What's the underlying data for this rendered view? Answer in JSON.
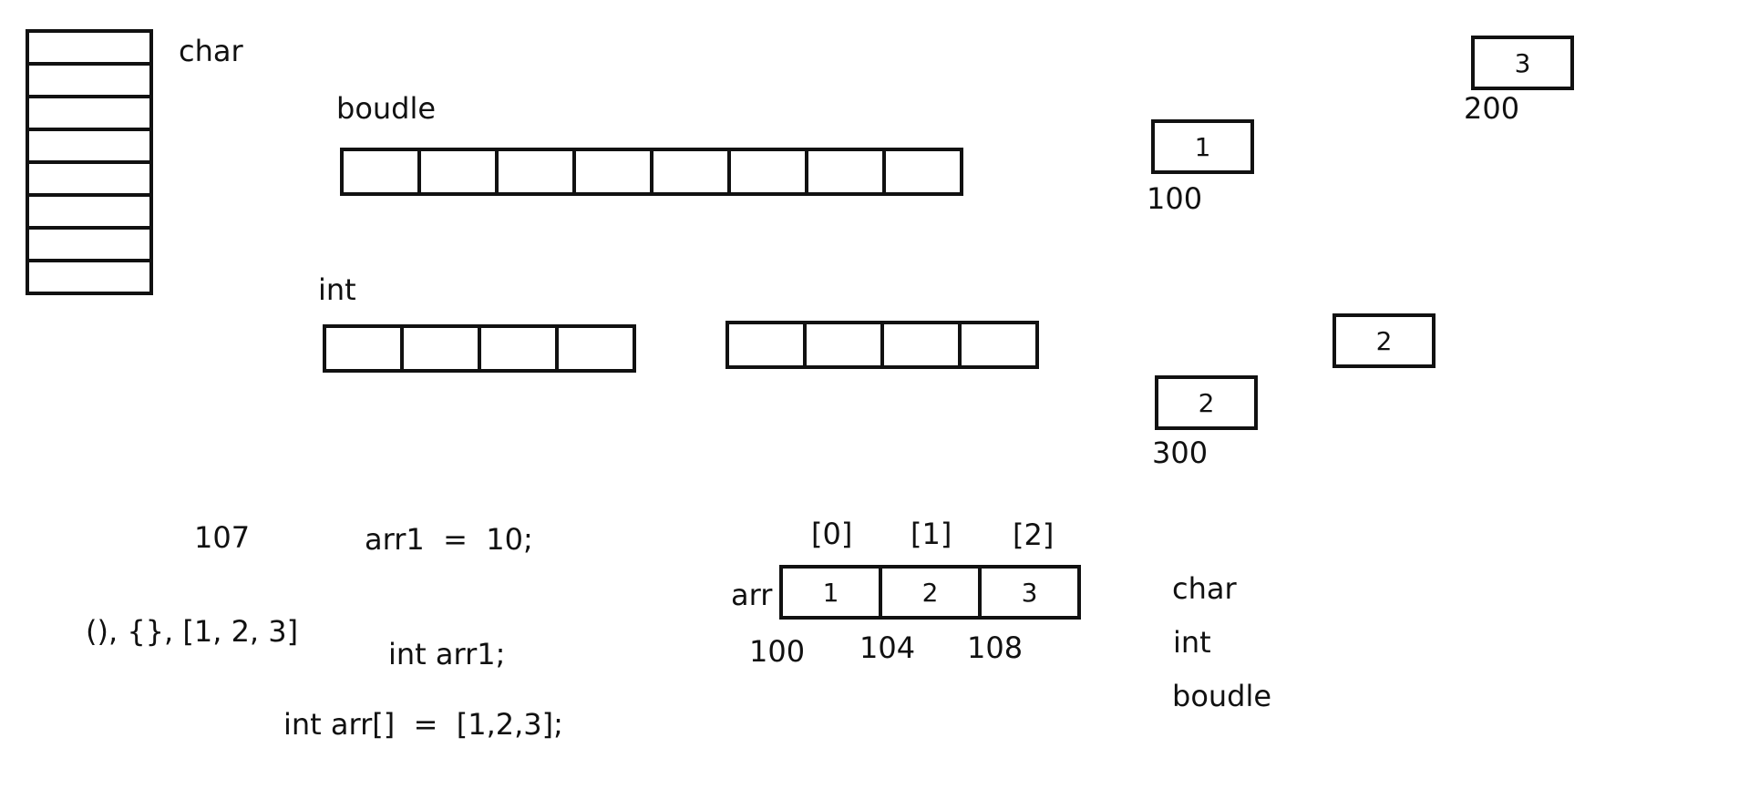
{
  "char_block": {
    "label": "char",
    "cells": 8
  },
  "double_block": {
    "label": "boudle",
    "cells": 8
  },
  "int_block": {
    "label": "int",
    "cells": 4
  },
  "int_block_2": {
    "cells": 4
  },
  "boxes": [
    {
      "value": "3",
      "address": "200"
    },
    {
      "value": "1",
      "address": "100"
    },
    {
      "value": "2",
      "address": ""
    },
    {
      "value": "2",
      "address": "300"
    }
  ],
  "notes": {
    "n107": "107",
    "brackets": "(), {}, [1, 2, 3]",
    "assign": "arr1  =  10;",
    "decl": "int arr1;",
    "arr_init": "int arr[]  =  [1,2,3];"
  },
  "array": {
    "name": "arr",
    "indices": [
      "[0]",
      "[1]",
      "[2]"
    ],
    "values": [
      "1",
      "2",
      "3"
    ],
    "addresses": [
      "100",
      "104",
      "108"
    ]
  },
  "type_list": [
    "char",
    "int",
    "boudle"
  ]
}
